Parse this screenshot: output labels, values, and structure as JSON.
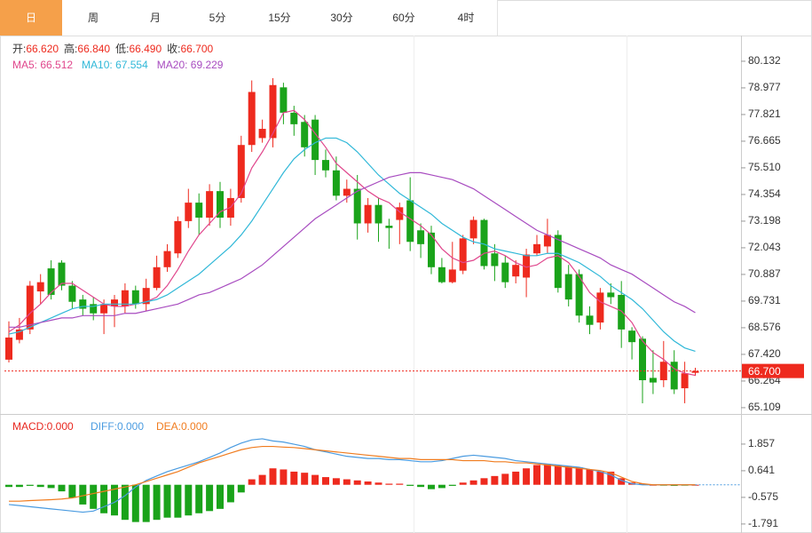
{
  "tabs": {
    "items": [
      "日",
      "周",
      "月",
      "5分",
      "15分",
      "30分",
      "60分",
      "4时"
    ],
    "selected": 0
  },
  "chart_data": [
    {
      "type": "candlestick",
      "ohlc_legend": [
        {
          "label": "开:",
          "value": "66.620"
        },
        {
          "label": "高:",
          "value": "66.840"
        },
        {
          "label": "低:",
          "value": "66.490"
        },
        {
          "label": "收:",
          "value": "66.700"
        }
      ],
      "up_color": "#ee2a1e",
      "down_color": "#1aa31a",
      "candles": {
        "open": [
          67.19,
          68.05,
          68.5,
          70.15,
          71.15,
          71.4,
          70.4,
          69.8,
          69.6,
          69.2,
          69.5,
          69.5,
          70.2,
          69.6,
          70.3,
          71.2,
          71.8,
          73.2,
          74.0,
          73.35,
          74.5,
          73.35,
          74.2,
          76.5,
          76.8,
          76.8,
          79.0,
          77.9,
          77.5,
          77.6,
          75.85,
          75.4,
          74.3,
          74.6,
          73.1,
          73.9,
          73.0,
          73.25,
          74.1,
          72.8,
          72.7,
          71.2,
          70.55,
          71.05,
          72.45,
          73.25,
          71.8,
          71.4,
          70.8,
          70.75,
          71.8,
          72.1,
          72.6,
          70.9,
          70.9,
          69.1,
          68.8,
          70.1,
          70.0,
          68.45,
          68.1,
          66.4,
          66.3,
          67.1,
          65.95,
          66.62
        ],
        "high": [
          68.85,
          69.0,
          70.6,
          70.9,
          71.5,
          71.5,
          70.6,
          70.0,
          69.9,
          69.8,
          70.0,
          70.5,
          70.4,
          70.7,
          71.7,
          72.2,
          73.4,
          74.6,
          74.4,
          74.8,
          74.9,
          74.6,
          76.9,
          79.3,
          77.6,
          79.4,
          79.2,
          78.2,
          77.8,
          77.8,
          76.3,
          76.0,
          75.0,
          75.2,
          74.2,
          74.2,
          73.3,
          74.0,
          75.1,
          73.1,
          73.0,
          71.6,
          72.3,
          72.6,
          73.4,
          73.3,
          72.2,
          71.7,
          71.5,
          72.0,
          72.6,
          73.3,
          72.8,
          71.3,
          71.1,
          69.5,
          70.3,
          70.5,
          70.6,
          68.6,
          68.2,
          67.6,
          68.0,
          67.6,
          67.1,
          66.84
        ],
        "low": [
          67.07,
          67.9,
          68.3,
          69.6,
          69.8,
          70.2,
          69.4,
          69.1,
          68.9,
          68.3,
          68.6,
          69.2,
          69.4,
          69.3,
          70.2,
          71.0,
          71.6,
          72.9,
          72.6,
          73.0,
          72.9,
          73.0,
          74.0,
          76.2,
          76.6,
          76.4,
          77.4,
          76.9,
          76.0,
          75.2,
          75.1,
          74.1,
          74.0,
          72.4,
          72.7,
          72.3,
          72.0,
          72.2,
          71.9,
          71.6,
          70.9,
          70.5,
          70.5,
          70.9,
          72.2,
          71.1,
          70.6,
          70.3,
          70.5,
          69.9,
          71.7,
          71.8,
          70.1,
          69.5,
          68.8,
          68.3,
          68.5,
          69.6,
          67.7,
          67.2,
          65.3,
          65.7,
          66.0,
          65.7,
          65.3,
          66.49
        ],
        "close": [
          68.15,
          68.5,
          70.4,
          70.55,
          70.0,
          70.4,
          69.7,
          69.4,
          69.2,
          69.6,
          69.8,
          70.2,
          69.6,
          70.3,
          71.2,
          71.9,
          73.2,
          74.0,
          73.35,
          74.5,
          73.35,
          74.2,
          76.5,
          78.8,
          77.2,
          79.1,
          77.9,
          77.4,
          76.4,
          75.85,
          75.4,
          74.3,
          74.6,
          73.1,
          73.9,
          73.1,
          72.9,
          73.8,
          72.3,
          72.2,
          71.2,
          70.55,
          71.1,
          72.45,
          73.25,
          71.25,
          71.25,
          70.55,
          71.3,
          71.75,
          72.2,
          72.6,
          70.3,
          69.8,
          69.1,
          68.7,
          70.1,
          69.9,
          68.5,
          67.95,
          66.3,
          66.2,
          67.1,
          65.9,
          66.6,
          66.7
        ]
      },
      "series": [
        {
          "legend": "MA5: 66.512",
          "color": "#e0468c",
          "values": [
            68.4,
            68.7,
            69.2,
            69.6,
            70.1,
            70.5,
            70.5,
            70.2,
            69.9,
            69.6,
            69.5,
            69.5,
            69.6,
            69.7,
            69.9,
            70.4,
            71.1,
            71.9,
            72.6,
            73.1,
            73.6,
            73.8,
            74.4,
            75.5,
            76.2,
            77.0,
            77.9,
            78.0,
            77.6,
            77.0,
            76.4,
            75.7,
            75.3,
            74.9,
            74.5,
            74.2,
            74.0,
            73.6,
            73.3,
            73.0,
            72.6,
            72.0,
            71.6,
            71.4,
            71.5,
            71.8,
            71.9,
            71.7,
            71.4,
            71.2,
            71.3,
            71.6,
            71.7,
            71.4,
            70.8,
            70.1,
            69.7,
            69.5,
            69.3,
            68.8,
            68.0,
            67.5,
            67.2,
            66.8,
            66.6,
            66.512
          ]
        },
        {
          "legend": "MA10: 67.554",
          "color": "#30b8d8",
          "values": [
            68.3,
            68.4,
            68.6,
            68.8,
            69.0,
            69.2,
            69.4,
            69.5,
            69.5,
            69.6,
            69.6,
            69.6,
            69.6,
            69.7,
            69.8,
            70.0,
            70.3,
            70.6,
            70.9,
            71.3,
            71.7,
            72.1,
            72.6,
            73.2,
            73.9,
            74.6,
            75.3,
            75.9,
            76.3,
            76.6,
            76.8,
            76.8,
            76.6,
            76.2,
            75.7,
            75.2,
            74.8,
            74.4,
            74.1,
            73.8,
            73.5,
            73.1,
            72.8,
            72.5,
            72.3,
            72.2,
            72.0,
            71.9,
            71.8,
            71.7,
            71.7,
            71.8,
            71.8,
            71.6,
            71.4,
            71.1,
            70.8,
            70.4,
            70.1,
            69.8,
            69.4,
            68.9,
            68.4,
            68.0,
            67.7,
            67.554
          ]
        },
        {
          "legend": "MA20: 69.229",
          "color": "#a84cc0",
          "values": [
            68.6,
            68.6,
            68.7,
            68.8,
            68.9,
            69.0,
            69.0,
            69.1,
            69.1,
            69.1,
            69.1,
            69.2,
            69.2,
            69.3,
            69.4,
            69.5,
            69.6,
            69.8,
            70.0,
            70.1,
            70.3,
            70.5,
            70.7,
            71.0,
            71.3,
            71.7,
            72.1,
            72.5,
            72.9,
            73.3,
            73.6,
            73.9,
            74.2,
            74.5,
            74.7,
            74.9,
            75.1,
            75.2,
            75.3,
            75.3,
            75.2,
            75.1,
            75.0,
            74.8,
            74.6,
            74.3,
            74.0,
            73.7,
            73.4,
            73.1,
            72.8,
            72.6,
            72.4,
            72.2,
            72.0,
            71.8,
            71.6,
            71.3,
            71.1,
            70.9,
            70.6,
            70.3,
            70.0,
            69.7,
            69.5,
            69.229
          ]
        }
      ],
      "ylim": [
        64.99,
        81.17
      ],
      "yticks": [
        80.132,
        78.977,
        77.821,
        76.665,
        {
          "value": 75.51,
          "label": "75.510"
        },
        74.354,
        73.198,
        72.043,
        70.887,
        69.731,
        68.576,
        {
          "value": 67.42,
          "label": "67.420"
        },
        66.264,
        65.109
      ],
      "last_price": {
        "value": 66.7,
        "label": "66.700"
      }
    },
    {
      "type": "macd",
      "histogram": {
        "legend": "MACD:0.000",
        "color": "#e8271f",
        "up_color": "#ee2a1e",
        "down_color": "#1aa31a",
        "values": [
          -0.1,
          -0.1,
          -0.05,
          -0.1,
          -0.15,
          -0.3,
          -0.6,
          -0.9,
          -1.1,
          -1.3,
          -1.4,
          -1.6,
          -1.7,
          -1.7,
          -1.6,
          -1.5,
          -1.5,
          -1.4,
          -1.3,
          -1.2,
          -1.1,
          -0.8,
          -0.35,
          0.25,
          0.45,
          0.75,
          0.7,
          0.6,
          0.55,
          0.45,
          0.35,
          0.3,
          0.25,
          0.2,
          0.15,
          0.1,
          0.05,
          0.05,
          -0.05,
          -0.1,
          -0.2,
          -0.15,
          -0.05,
          0.1,
          0.2,
          0.3,
          0.4,
          0.5,
          0.6,
          0.75,
          0.9,
          0.95,
          0.9,
          0.85,
          0.8,
          0.7,
          0.6,
          0.6,
          0.3,
          0.1,
          0.05,
          0.0,
          -0.02,
          -0.05,
          -0.03,
          0.0
        ]
      },
      "series": [
        {
          "legend": "DIFF:0.000",
          "color": "#4a9be0",
          "values": [
            -0.9,
            -0.95,
            -1.0,
            -1.05,
            -1.1,
            -1.15,
            -1.2,
            -1.25,
            -1.2,
            -1.0,
            -0.8,
            -0.5,
            -0.1,
            0.2,
            0.4,
            0.6,
            0.75,
            0.9,
            1.05,
            1.25,
            1.45,
            1.7,
            1.9,
            2.05,
            2.1,
            2.0,
            1.95,
            1.85,
            1.75,
            1.6,
            1.5,
            1.4,
            1.3,
            1.25,
            1.2,
            1.2,
            1.15,
            1.15,
            1.1,
            1.05,
            1.05,
            1.1,
            1.2,
            1.3,
            1.35,
            1.3,
            1.25,
            1.2,
            1.1,
            1.05,
            1.0,
            0.95,
            0.9,
            0.85,
            0.8,
            0.7,
            0.6,
            0.45,
            0.2,
            0.05,
            0,
            0,
            0,
            0,
            0,
            0
          ]
        },
        {
          "legend": "DEA:0.000",
          "color": "#f07c1f",
          "values": [
            -0.75,
            -0.75,
            -0.72,
            -0.7,
            -0.68,
            -0.65,
            -0.6,
            -0.5,
            -0.4,
            -0.3,
            -0.2,
            -0.1,
            0.0,
            0.15,
            0.3,
            0.45,
            0.6,
            0.8,
            1.0,
            1.15,
            1.3,
            1.45,
            1.6,
            1.7,
            1.75,
            1.75,
            1.72,
            1.7,
            1.65,
            1.6,
            1.55,
            1.5,
            1.45,
            1.4,
            1.35,
            1.3,
            1.25,
            1.2,
            1.2,
            1.15,
            1.15,
            1.15,
            1.15,
            1.1,
            1.1,
            1.1,
            1.05,
            1.05,
            1.0,
            1.0,
            0.95,
            0.9,
            0.85,
            0.8,
            0.75,
            0.7,
            0.65,
            0.55,
            0.35,
            0.15,
            0.05,
            0,
            0,
            0,
            0,
            0
          ]
        }
      ],
      "ylim": [
        -2.12,
        3.07
      ],
      "yticks": [
        1.857,
        0.641,
        -0.575,
        -1.791
      ]
    }
  ]
}
